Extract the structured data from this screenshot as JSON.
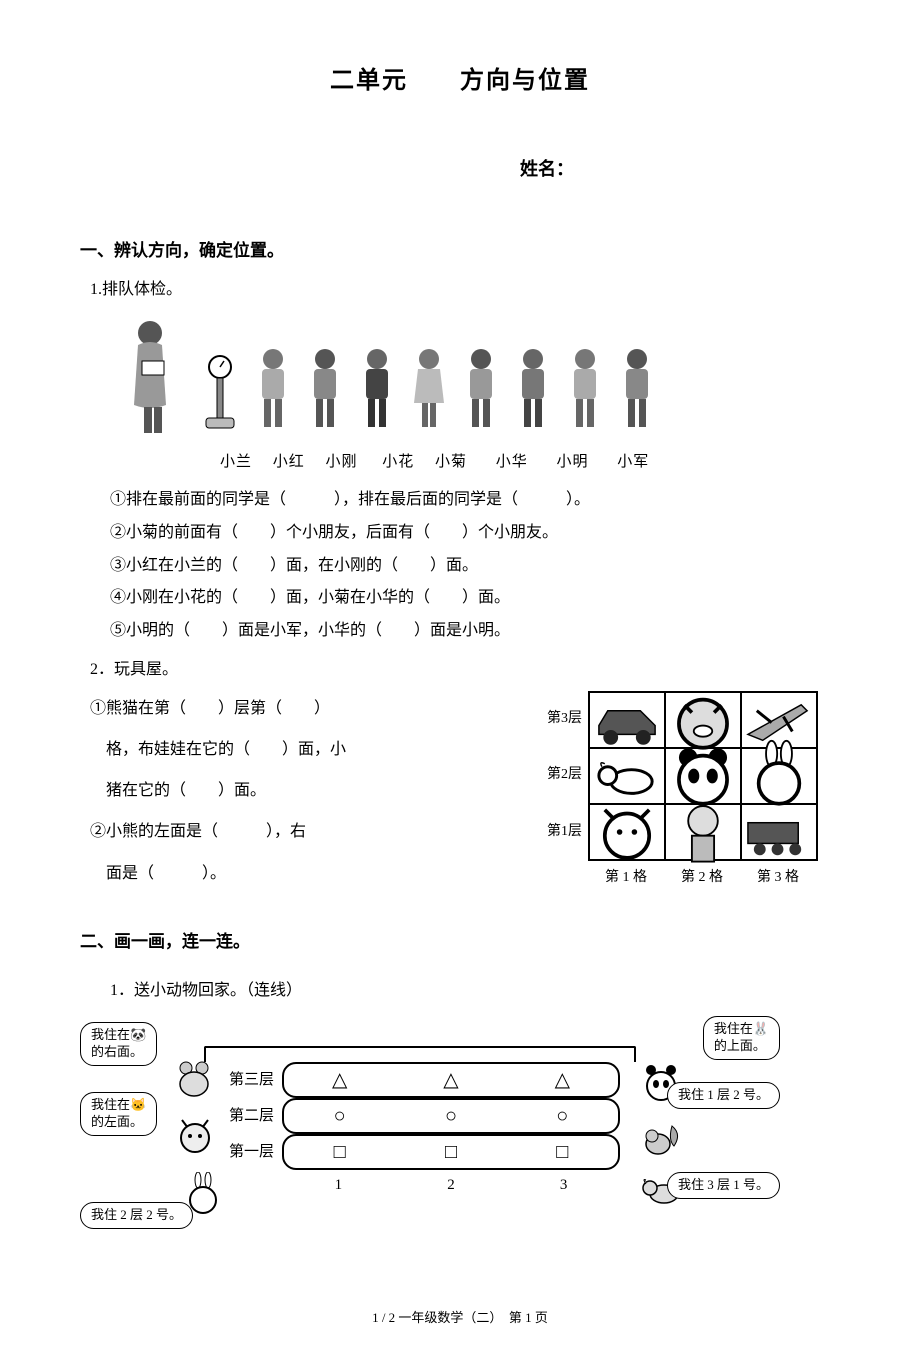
{
  "title": "二单元　　方向与位置",
  "name_label": "姓名：",
  "section1": {
    "heading": "一、辨认方向，确定位置。",
    "q1": {
      "label": "1.排队体检。",
      "names": [
        "小兰",
        "小红",
        "小刚",
        "小花",
        "小菊",
        "小华",
        "小明",
        "小军"
      ],
      "lines": [
        "①排在最前面的同学是（　　　），排在最后面的同学是（　　　）。",
        "②小菊的前面有（　　）个小朋友，后面有（　　）个小朋友。",
        "③小红在小兰的（　　）面，在小刚的（　　）面。",
        "④小刚在小花的（　　）面，小菊在小华的（　　）面。",
        "⑤小明的（　　）面是小军，小华的（　　）面是小明。"
      ]
    },
    "q2": {
      "label": "2．玩具屋。",
      "text_lines": [
        "①熊猫在第（　　）层第（　　）",
        "格，布娃娃在它的（　　）面，小",
        "猪在它的（　　）面。",
        "②小熊的左面是（　　　），右",
        "面是（　　　）。"
      ],
      "row_labels": [
        "第1层",
        "第2层",
        "第3层"
      ],
      "col_labels": [
        "第 1 格",
        "第 2 格",
        "第 3 格"
      ],
      "cells": [
        [
          "cat",
          "doll",
          "train"
        ],
        [
          "dog",
          "panda",
          "rabbit"
        ],
        [
          "car",
          "pig",
          "plane"
        ]
      ]
    }
  },
  "section2": {
    "heading": "二、画一画，连一连。",
    "q1": {
      "label": "1．送小动物回家。（连线）",
      "floor_labels": [
        "第一层",
        "第二层",
        "第三层"
      ],
      "col_nums": [
        "1",
        "2",
        "3"
      ],
      "shapes": {
        "floor3": "△",
        "floor2": "○",
        "floor1": "□"
      },
      "bubbles": {
        "topLeft": "我住在🐼\n的右面。",
        "midLeft": "我住在🐱\n的左面。",
        "botLeft": "我住 2 层 2 号。",
        "topRight": "我住在🐰\n的上面。",
        "midRight": "我住 1 层 2 号。",
        "botRight": "我住 3 层 1 号。"
      }
    }
  },
  "footer": "1 / 2 一年级数学（二）　第 1 页"
}
